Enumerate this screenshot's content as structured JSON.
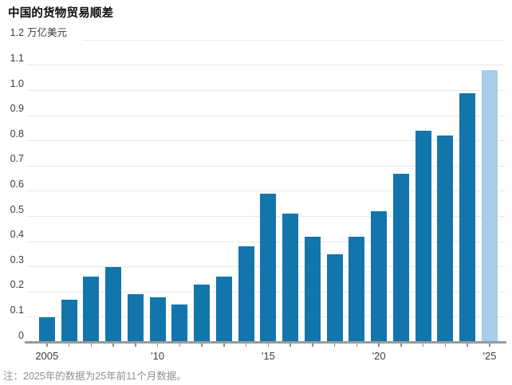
{
  "title": "中国的货物贸易顺差",
  "axis": {
    "unit_value": "1.2",
    "unit_label": "万亿美元",
    "y_ticks": [
      "0",
      "0.1",
      "0.2",
      "0.3",
      "0.4",
      "0.5",
      "0.6",
      "0.7",
      "0.8",
      "0.9",
      "1.0",
      "1.1"
    ],
    "x_ticks": [
      {
        "index": 0,
        "label": "2005"
      },
      {
        "index": 5,
        "label": "'10"
      },
      {
        "index": 10,
        "label": "'15"
      },
      {
        "index": 15,
        "label": "'20"
      },
      {
        "index": 20,
        "label": "'25"
      }
    ]
  },
  "note": "注：2025年的数据为25年前11个月数据。",
  "colors": {
    "bar": "#1276ad",
    "bar_partial_year": "#a6cdea",
    "gridline": "#e9e9e9",
    "axis_line": "#9b9b9b",
    "tick_label": "#3d3d3d",
    "note_text": "#8f8f8f"
  },
  "chart_data": {
    "type": "bar",
    "title": "中国的货物贸易顺差",
    "ylabel": "万亿美元",
    "ylim": [
      0,
      1.2
    ],
    "ytick_interval": 0.1,
    "grid": true,
    "legend": "none",
    "categories": [
      2005,
      2006,
      2007,
      2008,
      2009,
      2010,
      2011,
      2012,
      2013,
      2014,
      2015,
      2016,
      2017,
      2018,
      2019,
      2020,
      2021,
      2022,
      2023,
      2024,
      2025
    ],
    "values": [
      0.1,
      0.17,
      0.26,
      0.3,
      0.19,
      0.18,
      0.15,
      0.23,
      0.26,
      0.38,
      0.59,
      0.51,
      0.42,
      0.35,
      0.42,
      0.52,
      0.67,
      0.84,
      0.82,
      0.99,
      1.08
    ],
    "highlight": {
      "index": 20,
      "note": "2025年前11个月数据",
      "color": "#a6cdea"
    },
    "bar_color": "#1276ad",
    "note": "注：2025年的数据为25年前11个月数据。"
  }
}
